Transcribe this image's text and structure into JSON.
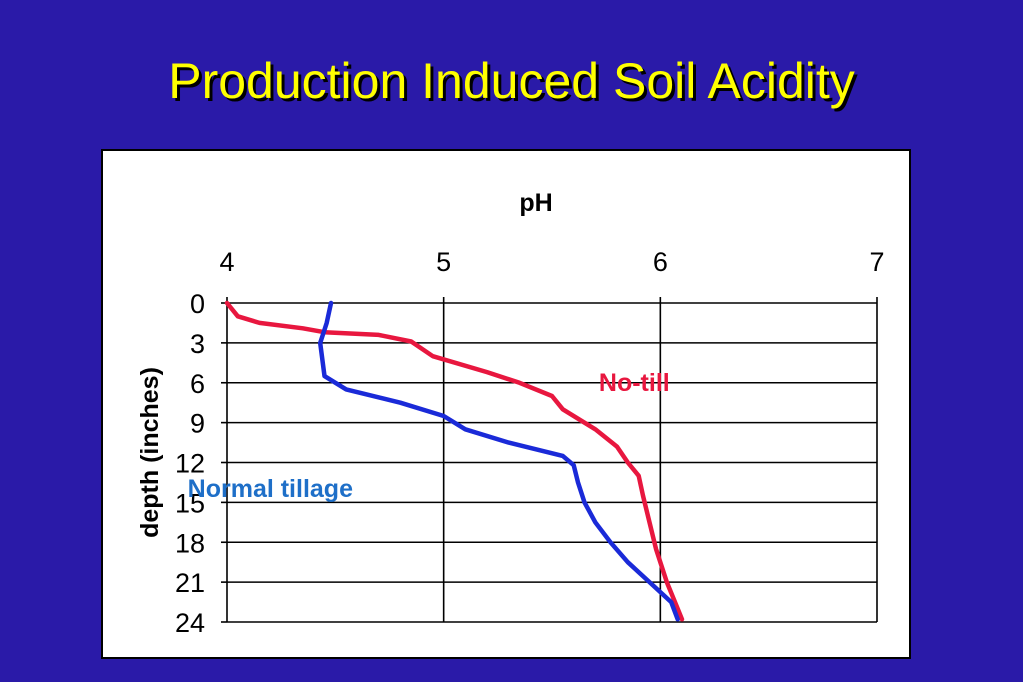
{
  "slide": {
    "title": "Production Induced Soil Acidity",
    "background": "#2a1aa8",
    "title_color": "#ffff00"
  },
  "chart_data": {
    "type": "line",
    "xlabel": "pH",
    "ylabel": "depth (inches)",
    "xlim": [
      4,
      7
    ],
    "ylim": [
      0,
      24
    ],
    "x_ticks": [
      "4",
      "5",
      "6",
      "7"
    ],
    "y_ticks": [
      "0",
      "3",
      "6",
      "9",
      "12",
      "15",
      "18",
      "21",
      "24"
    ],
    "y_inverted": true,
    "x_axis_position": "top",
    "grid": true,
    "series": [
      {
        "name": "No-till",
        "color": "#e8173f",
        "points": [
          [
            4.0,
            0.0
          ],
          [
            4.05,
            1.0
          ],
          [
            4.15,
            1.5
          ],
          [
            4.35,
            1.9
          ],
          [
            4.45,
            2.2
          ],
          [
            4.7,
            2.4
          ],
          [
            4.85,
            2.9
          ],
          [
            4.95,
            4.0
          ],
          [
            5.2,
            5.2
          ],
          [
            5.35,
            6.0
          ],
          [
            5.5,
            7.0
          ],
          [
            5.55,
            8.0
          ],
          [
            5.7,
            9.5
          ],
          [
            5.8,
            10.8
          ],
          [
            5.85,
            12.0
          ],
          [
            5.9,
            13.0
          ],
          [
            5.92,
            14.5
          ],
          [
            5.95,
            16.5
          ],
          [
            5.98,
            18.5
          ],
          [
            6.03,
            21.0
          ],
          [
            6.08,
            23.0
          ],
          [
            6.1,
            23.8
          ]
        ]
      },
      {
        "name": "Normal tillage",
        "color": "#1a2ad8",
        "points": [
          [
            4.48,
            0.0
          ],
          [
            4.46,
            1.5
          ],
          [
            4.43,
            3.0
          ],
          [
            4.45,
            5.5
          ],
          [
            4.55,
            6.5
          ],
          [
            4.8,
            7.5
          ],
          [
            5.0,
            8.5
          ],
          [
            5.1,
            9.5
          ],
          [
            5.3,
            10.5
          ],
          [
            5.55,
            11.5
          ],
          [
            5.6,
            12.2
          ],
          [
            5.62,
            13.5
          ],
          [
            5.65,
            15.0
          ],
          [
            5.7,
            16.5
          ],
          [
            5.77,
            18.0
          ],
          [
            5.85,
            19.5
          ],
          [
            5.95,
            21.0
          ],
          [
            6.05,
            22.5
          ],
          [
            6.08,
            23.8
          ]
        ]
      }
    ],
    "annotations": [
      {
        "text": "No-till",
        "color": "#e8173f",
        "x": 5.88,
        "y": 6.0
      },
      {
        "text": "Normal tillage",
        "color": "#1e6fc8",
        "x": 4.2,
        "y": 14.0
      }
    ]
  }
}
